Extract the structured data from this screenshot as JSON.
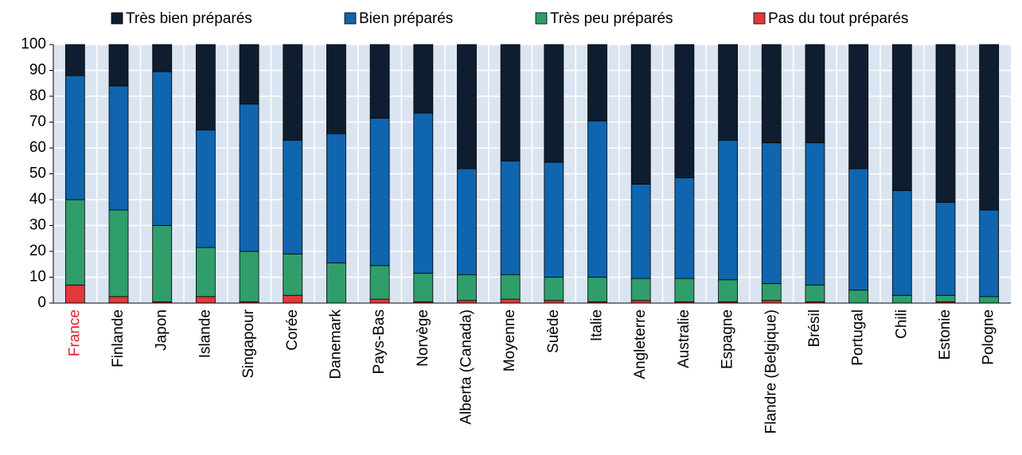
{
  "chart_data": {
    "type": "stacked_bar",
    "categories": [
      "France",
      "Finlande",
      "Japon",
      "Islande",
      "Singapour",
      "Corée",
      "Danemark",
      "Pays-Bas",
      "Norvège",
      "Alberta (Canada)",
      "Moyenne",
      "Suède",
      "Italie",
      "Angleterre",
      "Australie",
      "Espagne",
      "Flandre (Belgique)",
      "Brésil",
      "Portugal",
      "Chili",
      "Estonie",
      "Pologne"
    ],
    "series": [
      {
        "name": "Très bien préparés",
        "color": "#0e1e30",
        "values": [
          12,
          16,
          10.5,
          33,
          23,
          37,
          34.5,
          28.5,
          26.5,
          48,
          45,
          45.5,
          29.5,
          54,
          51.5,
          37,
          38,
          38,
          48,
          56.5,
          61,
          64
        ]
      },
      {
        "name": "Bien préparés",
        "color": "#0f65ae",
        "values": [
          48,
          48,
          59.5,
          45.5,
          57,
          44,
          50,
          57,
          62,
          41,
          44,
          44.5,
          60.5,
          36.5,
          39,
          54,
          54.5,
          55,
          47,
          40.5,
          36,
          33.5
        ]
      },
      {
        "name": "Très peu préparés",
        "color": "#2f9e6a",
        "values": [
          33,
          33.5,
          29.5,
          19,
          19.5,
          16,
          15.5,
          13,
          11,
          10,
          9.5,
          9,
          9.5,
          8.5,
          9,
          8.5,
          6.5,
          6.5,
          5,
          3,
          2.5,
          2.5
        ]
      },
      {
        "name": "Pas du tout préparés",
        "color": "#e2383c",
        "values": [
          7,
          2.5,
          0.5,
          2.5,
          0.5,
          3,
          0,
          1.5,
          0.5,
          1,
          1.5,
          1,
          0.5,
          1,
          0.5,
          0.5,
          1,
          0.5,
          0,
          0,
          0.5,
          0
        ]
      }
    ],
    "ylim": [
      0,
      100
    ],
    "yticks": [
      0,
      10,
      20,
      30,
      40,
      50,
      60,
      70,
      80,
      90,
      100
    ],
    "grid": true,
    "plot_background": "#dbe5f1",
    "highlight": {
      "index": 0,
      "color": "#e0262b"
    }
  }
}
